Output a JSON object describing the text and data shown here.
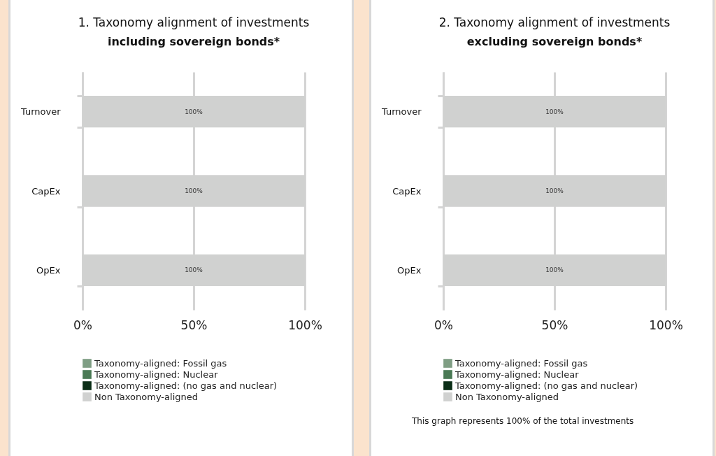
{
  "chart_data": [
    {
      "type": "bar",
      "title": "1. Taxonomy alignment of investments",
      "subtitle": "including sovereign bonds*",
      "orientation": "horizontal",
      "stacked": true,
      "categories": [
        "Turnover",
        "CapEx",
        "OpEx"
      ],
      "series": [
        {
          "name": "Taxonomy-aligned: Fossil gas",
          "color": "#7f9e84",
          "values": [
            0,
            0,
            0
          ]
        },
        {
          "name": "Taxonomy-aligned: Nuclear",
          "color": "#4a7a55",
          "values": [
            0,
            0,
            0
          ]
        },
        {
          "name": "Taxonomy-aligned: (no gas and nuclear)",
          "color": "#0b2e17",
          "values": [
            0,
            0,
            0
          ]
        },
        {
          "name": "Non Taxonomy-aligned",
          "color": "#d0d1d0",
          "values": [
            100,
            100,
            100
          ],
          "value_labels": [
            "100%",
            "100%",
            "100%"
          ]
        }
      ],
      "xlim": [
        0,
        100
      ],
      "xticks": [
        {
          "value": 0,
          "label": "0%"
        },
        {
          "value": 50,
          "label": "50%"
        },
        {
          "value": 100,
          "label": "100%"
        }
      ],
      "grid": "x",
      "legend": "bottom"
    },
    {
      "type": "bar",
      "title": "2. Taxonomy alignment of investments",
      "subtitle": "excluding sovereign bonds*",
      "orientation": "horizontal",
      "stacked": true,
      "categories": [
        "Turnover",
        "CapEx",
        "OpEx"
      ],
      "series": [
        {
          "name": "Taxonomy-aligned: Fossil gas",
          "color": "#7f9e84",
          "values": [
            0,
            0,
            0
          ]
        },
        {
          "name": "Taxonomy-aligned: Nuclear",
          "color": "#4a7a55",
          "values": [
            0,
            0,
            0
          ]
        },
        {
          "name": "Taxonomy-aligned: (no gas and nuclear)",
          "color": "#0b2e17",
          "values": [
            0,
            0,
            0
          ]
        },
        {
          "name": "Non Taxonomy-aligned",
          "color": "#d0d1d0",
          "values": [
            100,
            100,
            100
          ],
          "value_labels": [
            "100%",
            "100%",
            "100%"
          ]
        }
      ],
      "xlim": [
        0,
        100
      ],
      "xticks": [
        {
          "value": 0,
          "label": "0%"
        },
        {
          "value": 50,
          "label": "50%"
        },
        {
          "value": 100,
          "label": "100%"
        }
      ],
      "grid": "x",
      "legend": "bottom",
      "annotations": [
        "This graph represents 100% of the total investments"
      ]
    }
  ]
}
